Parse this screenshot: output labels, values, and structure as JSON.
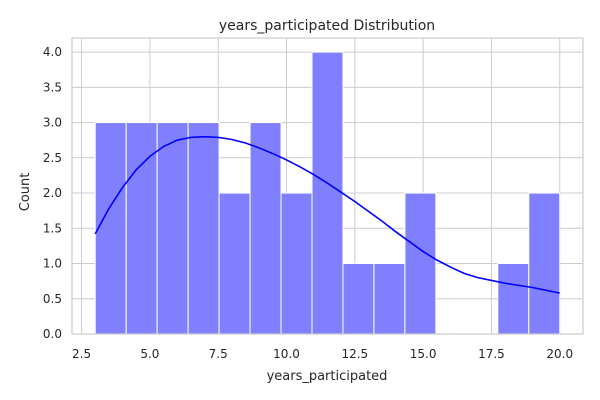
{
  "chart_data": {
    "type": "bar",
    "title": "years_participated Distribution",
    "xlabel": "years_participated",
    "ylabel": "Count",
    "xlim": [
      2.15,
      20.85
    ],
    "ylim": [
      0,
      4.2
    ],
    "xticks": [
      2.5,
      5.0,
      7.5,
      10.0,
      12.5,
      15.0,
      17.5,
      20.0
    ],
    "xtick_labels": [
      "2.5",
      "5.0",
      "7.5",
      "10.0",
      "12.5",
      "15.0",
      "17.5",
      "20.0"
    ],
    "yticks": [
      0.0,
      0.5,
      1.0,
      1.5,
      2.0,
      2.5,
      3.0,
      3.5,
      4.0
    ],
    "ytick_labels": [
      "0.0",
      "0.5",
      "1.0",
      "1.5",
      "2.0",
      "2.5",
      "3.0",
      "3.5",
      "4.0"
    ],
    "grid": true,
    "bin_start": 3.0,
    "bin_width": 1.1333,
    "values": [
      3,
      3,
      3,
      3,
      2,
      3,
      2,
      4,
      1,
      1,
      2,
      0,
      0,
      1,
      2
    ],
    "kde": {
      "x": [
        3.0,
        3.5,
        4.0,
        4.5,
        5.0,
        5.5,
        6.0,
        6.5,
        7.0,
        7.5,
        8.0,
        8.5,
        9.0,
        9.5,
        10.0,
        10.5,
        11.0,
        11.5,
        12.0,
        12.5,
        13.0,
        13.5,
        14.0,
        14.5,
        15.0,
        15.5,
        16.0,
        16.5,
        17.0,
        17.5,
        18.0,
        18.5,
        19.0,
        19.5,
        20.0
      ],
      "y": [
        1.42,
        1.78,
        2.08,
        2.33,
        2.52,
        2.66,
        2.75,
        2.79,
        2.8,
        2.79,
        2.76,
        2.71,
        2.64,
        2.56,
        2.47,
        2.37,
        2.26,
        2.14,
        2.01,
        1.88,
        1.74,
        1.6,
        1.45,
        1.31,
        1.17,
        1.05,
        0.95,
        0.86,
        0.8,
        0.76,
        0.72,
        0.69,
        0.66,
        0.62,
        0.58
      ]
    },
    "colors": {
      "bar": "#8080ff",
      "bar_edge": "#ffffff",
      "kde": "#0000ff",
      "grid": "#cccccc"
    }
  }
}
